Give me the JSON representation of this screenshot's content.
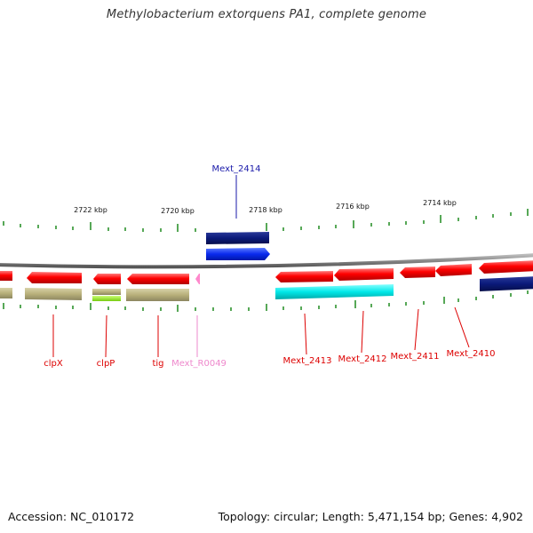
{
  "header": {
    "title": "Methylobacterium extorquens PA1, complete genome"
  },
  "footer": {
    "accession": "Accession: NC_010172",
    "topology": "Topology: circular; Length: 5,471,154 bp; Genes: 4,902"
  },
  "map": {
    "backbone_color": "#8c8c8c",
    "tick_color": "#1f8a1f",
    "scale_labels": [
      {
        "kbp": 2722,
        "text": "2722 kbp"
      },
      {
        "kbp": 2720,
        "text": "2720 kbp"
      },
      {
        "kbp": 2718,
        "text": "2718 kbp"
      },
      {
        "kbp": 2716,
        "text": "2716 kbp"
      },
      {
        "kbp": 2714,
        "text": "2714 kbp"
      }
    ],
    "callouts": [
      {
        "text": "Mext_2414",
        "color": "#1a1aaa"
      },
      {
        "text": "clpX",
        "color": "#dd0000"
      },
      {
        "text": "clpP",
        "color": "#dd0000"
      },
      {
        "text": "tig",
        "color": "#dd0000"
      },
      {
        "text": "Mext_R0049",
        "color": "#ee88cc"
      },
      {
        "text": "Mext_2413",
        "color": "#dd0000"
      },
      {
        "text": "Mext_2412",
        "color": "#dd0000"
      },
      {
        "text": "Mext_2411",
        "color": "#dd0000"
      },
      {
        "text": "Mext_2410",
        "color": "#dd0000"
      }
    ],
    "feature_colors": {
      "cds": "#ff0000",
      "khaki": "#b8b07a",
      "lime": "#99ee22",
      "cyan": "#00e8e8",
      "navy": "#0b1a7a",
      "blue": "#0a2aee",
      "pink": "#ff88cc"
    }
  }
}
